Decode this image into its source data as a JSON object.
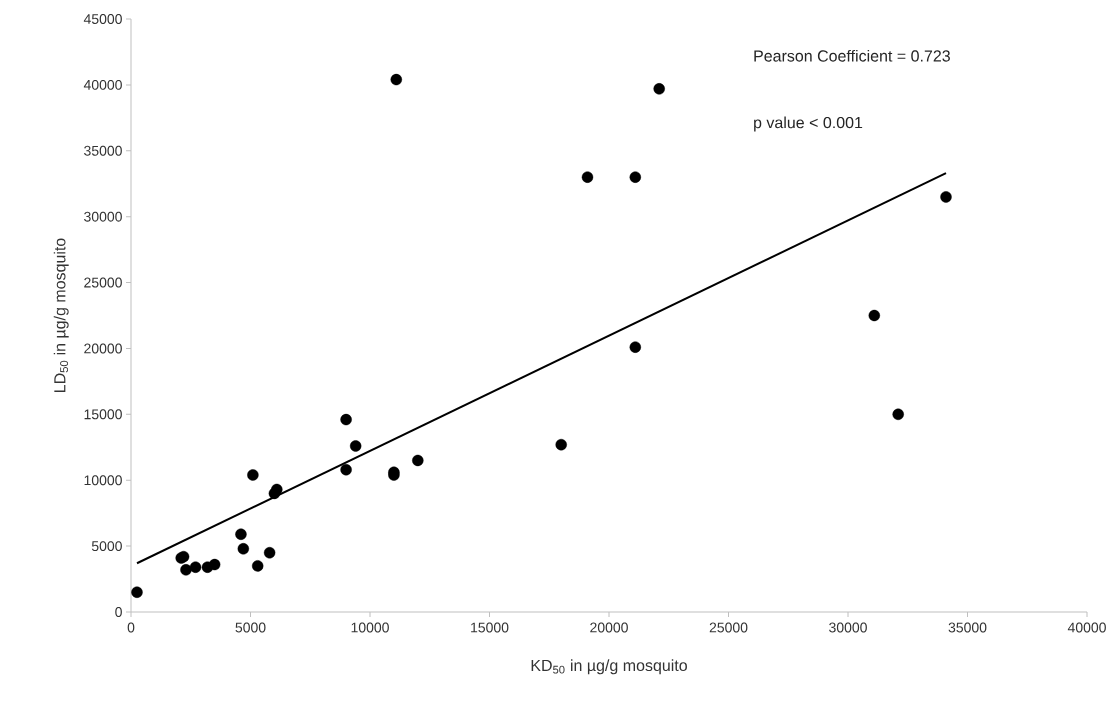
{
  "chart_data": {
    "type": "scatter",
    "xlabel": "KD$_{50}$ in µg/g mosquito",
    "ylabel": "LD$_{50}$ in µg/g mosquito",
    "annotations": [
      "Pearson Coefficient = 0.723",
      "p value < 0.001"
    ],
    "xlim": [
      0,
      40000
    ],
    "ylim": [
      0,
      45000
    ],
    "xticks": [
      0,
      5000,
      10000,
      15000,
      20000,
      25000,
      30000,
      35000,
      40000
    ],
    "yticks": [
      0,
      5000,
      10000,
      15000,
      20000,
      25000,
      30000,
      35000,
      40000,
      45000
    ],
    "grid": false,
    "series": [
      {
        "marker": "circle",
        "color": "#000000",
        "x": [
          250,
          2100,
          2200,
          2300,
          2700,
          3200,
          3500,
          4600,
          4700,
          5300,
          5800,
          5100,
          6000,
          6100,
          9000,
          9000,
          9400,
          11000,
          11000,
          12000,
          18000,
          19100,
          21100,
          21100,
          22100,
          11100,
          31100,
          32100,
          34100
        ],
        "values": [
          1500,
          4100,
          4200,
          3200,
          3400,
          3400,
          3600,
          5900,
          4800,
          3500,
          4500,
          10400,
          9000,
          9300,
          14600,
          10800,
          12600,
          10600,
          10400,
          11500,
          12700,
          33000,
          33000,
          20100,
          39700,
          40400,
          22500,
          15000,
          31500
        ]
      },
      {
        "type": "line",
        "color": "#000000",
        "marker": "none",
        "line_style": "solid",
        "x": [
          250,
          34100
        ],
        "values": [
          3700,
          33300
        ]
      }
    ]
  }
}
